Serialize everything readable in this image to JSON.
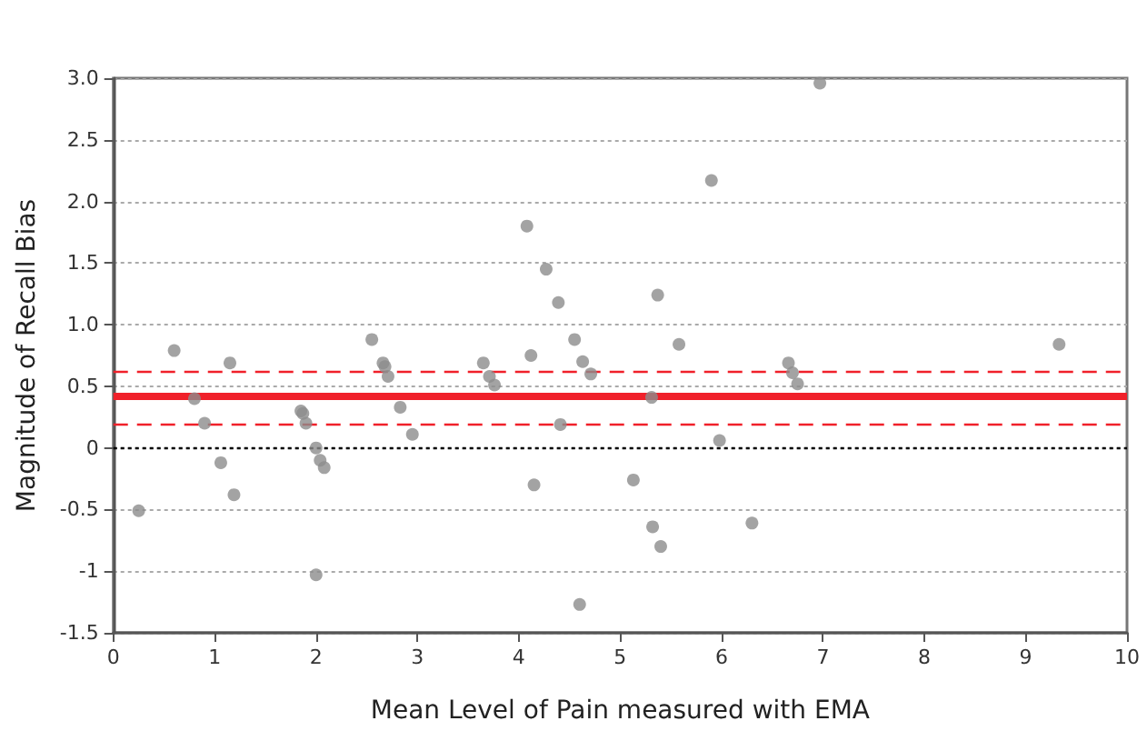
{
  "chart_data": {
    "type": "scatter",
    "xlabel": "Mean Level of Pain measured with EMA",
    "ylabel": "Magnitude of Recall Bias",
    "xlim": [
      0,
      10
    ],
    "xticks": [
      0,
      1,
      2,
      3,
      4,
      5,
      6,
      7,
      8,
      9,
      10
    ],
    "ylim": [
      -1.5,
      3.0
    ],
    "yticks": [
      {
        "value": -1.5,
        "label": "-1.5"
      },
      {
        "value": -1,
        "label": "-1"
      },
      {
        "value": -0.5,
        "label": "-0.5"
      },
      {
        "value": 0,
        "label": "0"
      },
      {
        "value": 0.5,
        "label": "0.5"
      },
      {
        "value": 1,
        "label": "1.0"
      },
      {
        "value": 1.5,
        "label": "1.5"
      },
      {
        "value": 2,
        "label": "2.0"
      },
      {
        "value": 2.5,
        "label": "2.5"
      },
      {
        "value": 3,
        "label": "3.0"
      }
    ],
    "grid": "y",
    "marker": "circle",
    "series": [
      {
        "color": "#8c8c8c",
        "x": [
          0.25,
          0.6,
          0.8,
          0.9,
          1.06,
          1.15,
          1.19,
          1.85,
          1.87,
          1.9,
          2.0,
          2.04,
          2.08,
          2.0,
          2.55,
          2.66,
          2.68,
          2.71,
          2.83,
          2.95,
          3.65,
          3.71,
          3.76,
          4.12,
          4.15,
          4.55,
          4.63,
          4.6,
          4.71,
          4.41,
          5.58,
          5.31,
          5.13,
          5.32,
          5.4,
          5.98,
          6.3,
          6.66,
          6.7,
          6.75,
          9.33,
          4.08,
          4.27,
          4.39,
          6.97,
          5.9,
          5.37
        ],
        "values": [
          -0.51,
          0.79,
          0.4,
          0.2,
          -0.12,
          0.69,
          -0.38,
          0.3,
          0.28,
          0.2,
          0.0,
          -0.1,
          -0.16,
          -1.03,
          0.88,
          0.69,
          0.66,
          0.58,
          0.33,
          0.11,
          0.69,
          0.58,
          0.51,
          0.75,
          -0.3,
          0.88,
          0.7,
          -1.27,
          0.6,
          0.19,
          0.84,
          0.41,
          -0.26,
          -0.64,
          -0.8,
          0.06,
          -0.61,
          0.69,
          0.61,
          0.52,
          0.84,
          1.8,
          1.45,
          1.18,
          2.96,
          2.17,
          1.24
        ]
      }
    ],
    "ref_lines": [
      {
        "axis": "y",
        "value": 0,
        "color": "#000000",
        "line_style": "dotted"
      },
      {
        "axis": "y",
        "value": 0.42,
        "color": "#f0202a",
        "line_style": "solid"
      },
      {
        "axis": "y",
        "value": 0.62,
        "color": "#f0202a",
        "line_style": "dashed"
      },
      {
        "axis": "y",
        "value": 0.2,
        "color": "#f0202a",
        "line_style": "dashed"
      }
    ]
  }
}
